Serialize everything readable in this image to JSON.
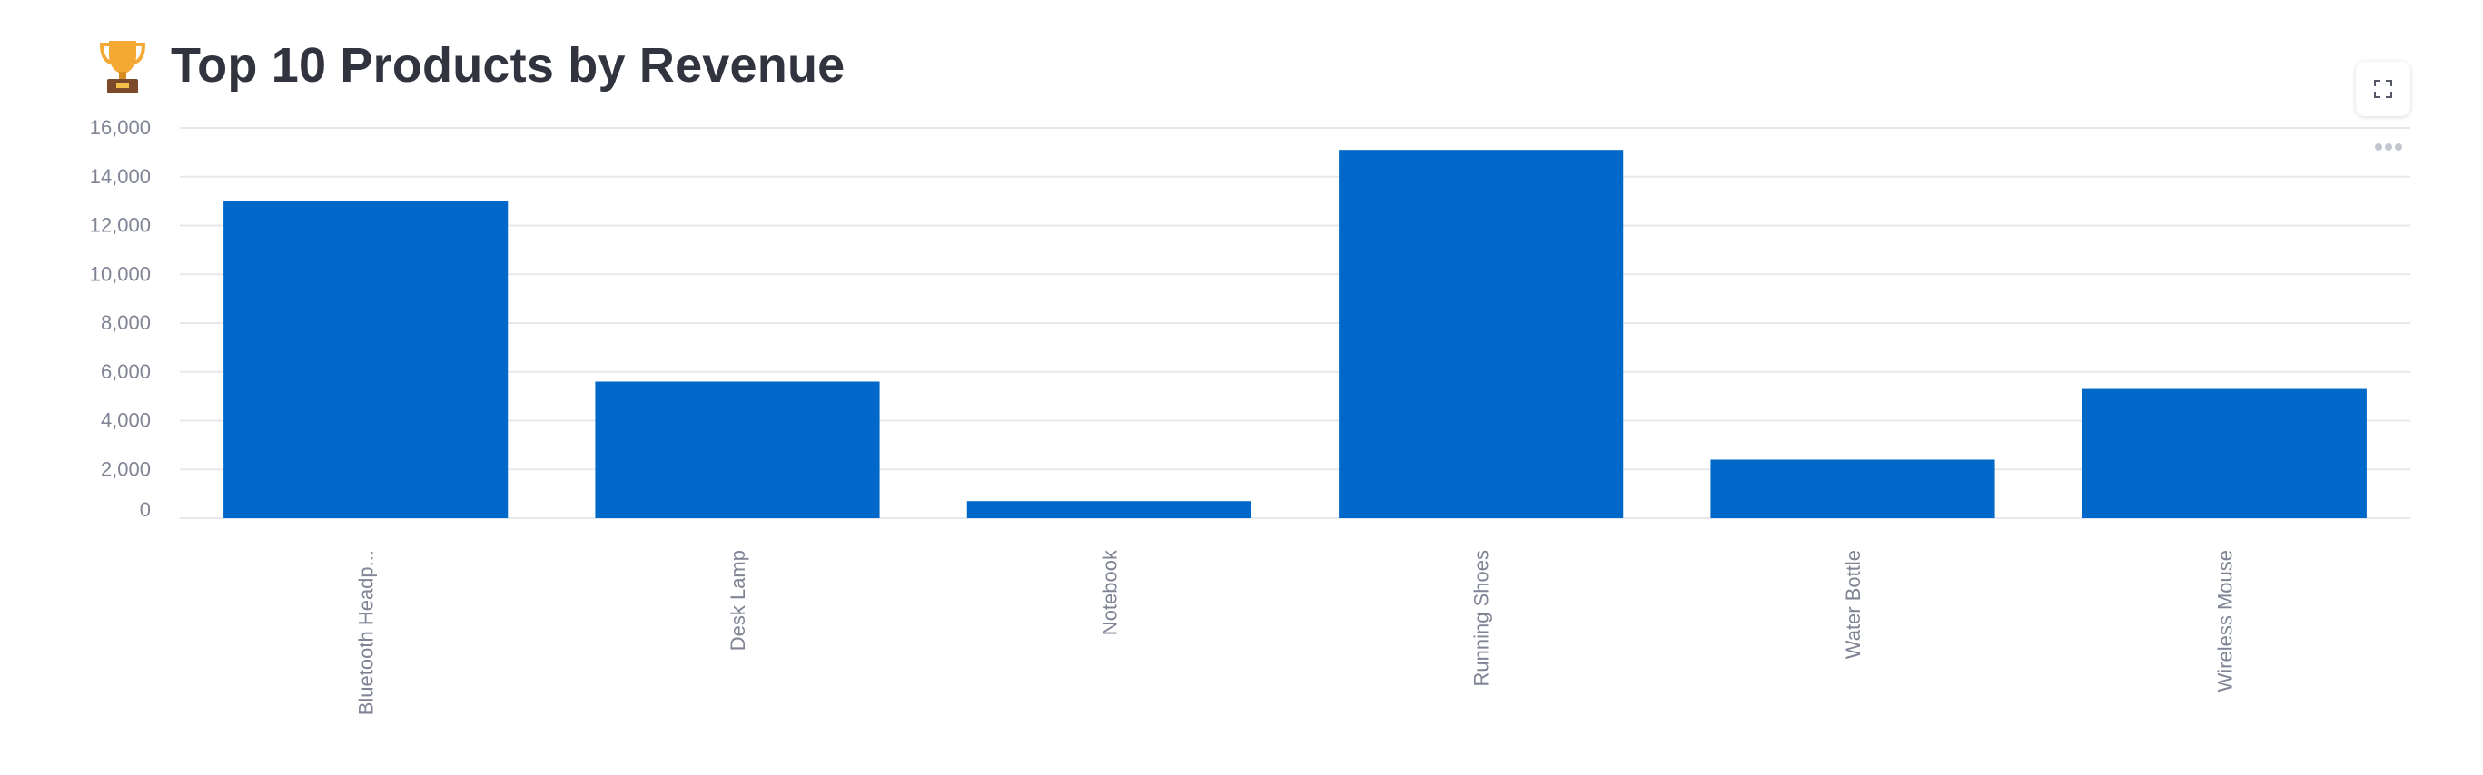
{
  "page": {
    "title": "Top 10 Products by Revenue",
    "title_icon": "trophy-icon",
    "toolbar": {
      "fullscreen_icon": "fullscreen-icon",
      "more_icon": "more-options-icon"
    }
  },
  "chart_data": {
    "type": "bar",
    "title": "",
    "xlabel": "",
    "ylabel": "",
    "categories": [
      "Bluetooth Headp...",
      "Desk Lamp",
      "Notebook",
      "Running Shoes",
      "Water Bottle",
      "Wireless Mouse"
    ],
    "values": [
      13000,
      5600,
      700,
      15100,
      2400,
      5300
    ],
    "ylim": [
      0,
      16000
    ],
    "yticks": [
      0,
      2000,
      4000,
      6000,
      8000,
      10000,
      12000,
      14000,
      16000
    ],
    "ytick_labels": [
      "0",
      "2,000",
      "4,000",
      "6,000",
      "8,000",
      "10,000",
      "12,000",
      "14,000",
      "16,000"
    ],
    "bar_color": "#0068c9",
    "grid": true,
    "legend": "none"
  }
}
